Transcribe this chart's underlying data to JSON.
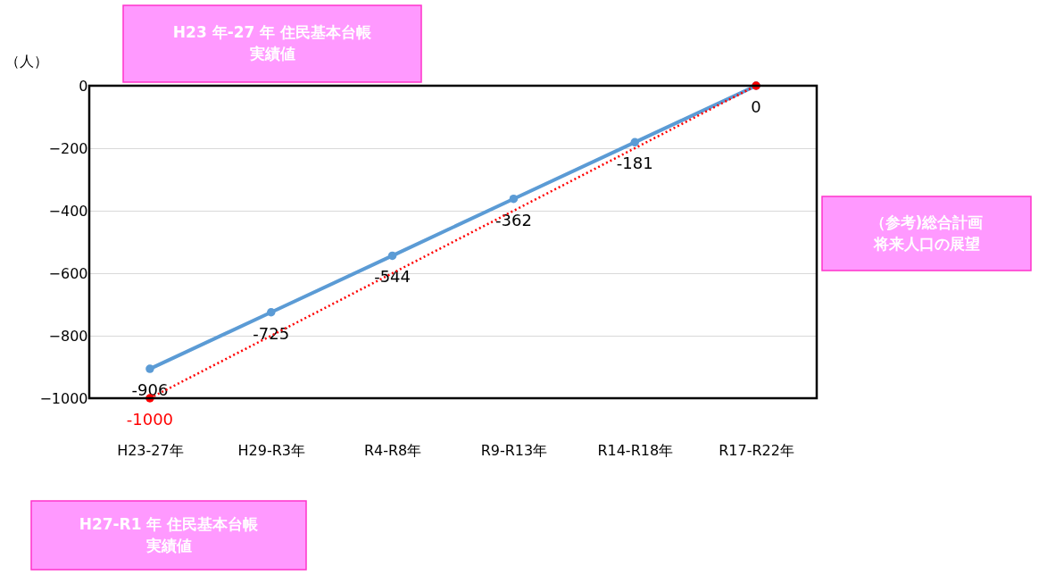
{
  "chart_data": {
    "type": "line",
    "ylabel": "（人）",
    "categories": [
      "H23-27年",
      "H29-R3年",
      "R4-R8年",
      "R9-R13年",
      "R14-R18年",
      "R17-R22年"
    ],
    "ylim": [
      -1000,
      0
    ],
    "yticks": [
      -1000,
      -800,
      -600,
      -400,
      -200,
      0
    ],
    "grid": "y",
    "marker": "circle",
    "series": [
      {
        "color": "#5b9bd5",
        "line_style": "solid",
        "values": [
          -906,
          -725,
          -544,
          -362,
          -181,
          0
        ],
        "value_labels": [
          "-906",
          "-725",
          "-544",
          "-362",
          "-181",
          "0"
        ]
      },
      {
        "color": "#ff0000",
        "line_style": "dotted",
        "values": [
          -1000,
          null,
          null,
          null,
          null,
          0
        ],
        "value_labels": [
          "-1000",
          null,
          null,
          null,
          null,
          null
        ]
      }
    ],
    "annotations": [
      "H23 年-27 年 住民基本台帳実績値",
      "H27-R1 年 住民基本台帳実績値",
      "（参考)総合計画将来人口の展望"
    ]
  }
}
